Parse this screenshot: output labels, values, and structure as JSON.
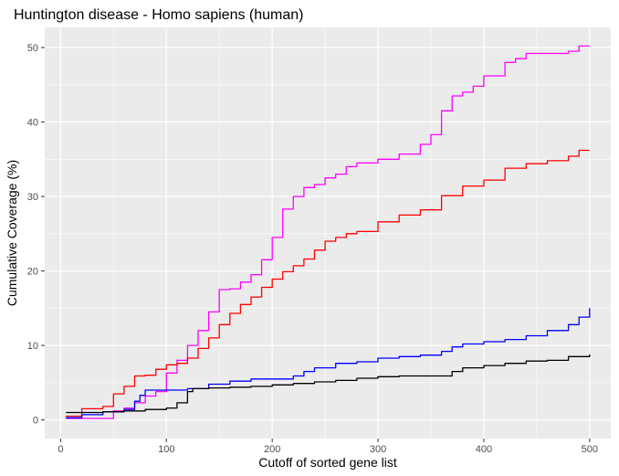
{
  "chart_data": {
    "type": "line",
    "title": "Huntington disease - Homo sapiens (human)",
    "xlabel": "Cutoff of sorted gene list",
    "ylabel": "Cumulative Coverage (%)",
    "xlim": [
      -15,
      520
    ],
    "ylim": [
      -2.5,
      52.7
    ],
    "xticks": [
      0,
      100,
      200,
      300,
      400,
      500
    ],
    "yticks": [
      0,
      10,
      20,
      30,
      40,
      50
    ],
    "grid": true,
    "legend": "none",
    "colors": {
      "panel": "#ebebeb",
      "grid": "#ffffff"
    },
    "series": [
      {
        "color": "#ff00ff",
        "x": [
          5,
          20,
          40,
          50,
          60,
          70,
          80,
          90,
          100,
          110,
          120,
          130,
          140,
          150,
          160,
          170,
          180,
          190,
          200,
          210,
          220,
          230,
          240,
          250,
          260,
          270,
          280,
          300,
          320,
          340,
          350,
          360,
          370,
          380,
          390,
          400,
          420,
          430,
          440,
          460,
          480,
          490,
          500
        ],
        "y": [
          0.2,
          0.2,
          0.2,
          1.2,
          1.6,
          2.3,
          3.2,
          3.8,
          6.3,
          8.0,
          10.0,
          12.0,
          14.5,
          17.5,
          17.6,
          18.5,
          19.5,
          21.5,
          24.5,
          28.3,
          30.0,
          31.2,
          31.6,
          32.5,
          33.0,
          34.0,
          34.5,
          35.0,
          35.7,
          37.0,
          38.3,
          41.5,
          43.5,
          44.0,
          44.8,
          46.2,
          48.0,
          48.5,
          49.2,
          49.2,
          49.5,
          50.2,
          50.2
        ]
      },
      {
        "color": "#ff0000",
        "x": [
          5,
          20,
          40,
          50,
          60,
          70,
          80,
          90,
          100,
          110,
          120,
          130,
          140,
          150,
          160,
          170,
          180,
          190,
          200,
          210,
          220,
          230,
          240,
          250,
          260,
          270,
          280,
          300,
          320,
          340,
          360,
          380,
          400,
          420,
          440,
          460,
          480,
          490,
          500
        ],
        "y": [
          0.5,
          1.5,
          1.8,
          3.5,
          4.5,
          5.9,
          6.0,
          6.8,
          7.4,
          7.6,
          8.3,
          9.6,
          11.0,
          12.8,
          14.3,
          15.5,
          16.5,
          17.8,
          18.9,
          19.9,
          20.7,
          21.6,
          22.8,
          24.0,
          24.5,
          25.0,
          25.3,
          26.6,
          27.5,
          28.2,
          30.1,
          31.4,
          32.2,
          33.8,
          34.4,
          34.8,
          35.4,
          36.2,
          36.2
        ]
      },
      {
        "color": "#0000ff",
        "x": [
          5,
          20,
          40,
          60,
          70,
          75,
          80,
          100,
          120,
          140,
          160,
          180,
          200,
          220,
          230,
          240,
          260,
          280,
          300,
          320,
          340,
          360,
          370,
          380,
          400,
          420,
          440,
          460,
          480,
          490,
          500
        ],
        "y": [
          0.3,
          0.7,
          1.1,
          1.4,
          2.5,
          3.3,
          4.0,
          4.0,
          4.2,
          4.8,
          5.2,
          5.5,
          5.5,
          5.9,
          6.5,
          7.0,
          7.6,
          7.8,
          8.3,
          8.5,
          8.7,
          9.2,
          9.8,
          10.2,
          10.5,
          10.8,
          11.3,
          12.0,
          12.8,
          13.8,
          15.0
        ]
      },
      {
        "color": "#000000",
        "x": [
          5,
          20,
          40,
          60,
          80,
          100,
          110,
          120,
          125,
          140,
          160,
          180,
          200,
          220,
          240,
          260,
          280,
          300,
          320,
          340,
          360,
          370,
          380,
          400,
          420,
          440,
          460,
          480,
          500
        ],
        "y": [
          1.0,
          1.0,
          1.1,
          1.2,
          1.4,
          1.6,
          2.3,
          3.8,
          4.2,
          4.3,
          4.4,
          4.5,
          4.7,
          4.9,
          5.1,
          5.3,
          5.6,
          5.8,
          5.9,
          5.9,
          5.9,
          6.5,
          7.0,
          7.3,
          7.6,
          7.9,
          8.0,
          8.5,
          8.8
        ]
      }
    ]
  }
}
